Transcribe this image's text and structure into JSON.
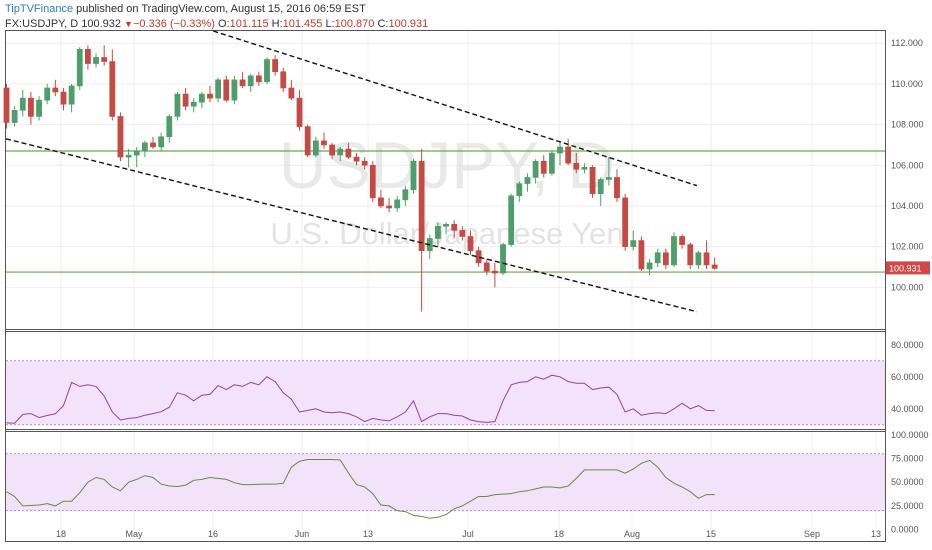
{
  "header": {
    "brand": "TipTVFinance",
    "published": " published on TradingView.com, August 15, 2016 06:59 EST",
    "symbol": "FX:USDJPY, D",
    "last": "100.932",
    "change": "−0.336 (−0.33%)",
    "open_label": "O:",
    "open": "101.115",
    "high_label": "H:",
    "high": "101.455",
    "low_label": "L:",
    "low": "100.870",
    "close_label": "C:",
    "close": "100.931"
  },
  "watermark": {
    "symbol": "USDJPY, D",
    "description": "U.S. Dollar/Japanese Yen"
  },
  "colors": {
    "up": "#4e9e6c",
    "down": "#c64a44",
    "grid": "#eeeeee",
    "resistance": "#6aa84f",
    "rsi_line": "#9c3f9c",
    "stoch_line": "#5f8f3a",
    "band_fill": "#f2e3fb",
    "price_tag": "#d24848"
  },
  "chart_data": [
    {
      "type": "candlestick",
      "title": "USDJPY, D",
      "subtitle": "U.S. Dollar/Japanese Yen",
      "x_tick_labels": [
        "18",
        "May",
        "16",
        "Jun",
        "13",
        "Jul",
        "18",
        "Aug",
        "15",
        "Sep",
        "13"
      ],
      "ylim": [
        98.0,
        112.6
      ],
      "y_ticks": [
        100,
        102,
        104,
        106,
        108,
        110,
        112
      ],
      "y_tick_labels": [
        "100.000",
        "102.000",
        "104.000",
        "106.000",
        "108.000",
        "110.000",
        "112.000"
      ],
      "last_price_label": "100.931",
      "horizontal_lines": [
        106.7,
        100.75
      ],
      "trend_lines": [
        {
          "from": [
            0,
            107.3
          ],
          "to": [
            100,
            98.8
          ]
        },
        {
          "from": [
            30,
            112.6
          ],
          "to": [
            100,
            105.0
          ]
        }
      ],
      "grid": true,
      "ohlc": [
        [
          109.8,
          110.0,
          107.8,
          108.1
        ],
        [
          108.1,
          108.9,
          107.9,
          108.7
        ],
        [
          108.7,
          109.7,
          108.4,
          109.3
        ],
        [
          109.3,
          109.6,
          108.0,
          108.4
        ],
        [
          108.4,
          109.4,
          108.2,
          109.2
        ],
        [
          109.2,
          110.0,
          109.0,
          109.8
        ],
        [
          109.8,
          110.2,
          109.4,
          109.6
        ],
        [
          109.6,
          109.8,
          108.7,
          109.0
        ],
        [
          109.0,
          110.0,
          108.6,
          109.9
        ],
        [
          109.9,
          111.8,
          109.7,
          111.7
        ],
        [
          111.7,
          111.9,
          110.7,
          111.0
        ],
        [
          111.0,
          111.5,
          110.8,
          111.3
        ],
        [
          111.3,
          111.9,
          110.9,
          111.1
        ],
        [
          111.1,
          111.7,
          108.2,
          108.4
        ],
        [
          108.4,
          108.6,
          106.2,
          106.4
        ],
        [
          106.4,
          106.8,
          105.9,
          106.5
        ],
        [
          106.5,
          106.9,
          105.9,
          106.7
        ],
        [
          106.7,
          107.2,
          106.4,
          107.1
        ],
        [
          107.1,
          107.4,
          106.8,
          106.9
        ],
        [
          106.9,
          107.6,
          106.7,
          107.4
        ],
        [
          107.4,
          108.5,
          107.1,
          108.4
        ],
        [
          108.4,
          109.6,
          108.2,
          109.5
        ],
        [
          109.5,
          109.8,
          108.7,
          108.9
        ],
        [
          108.9,
          109.3,
          108.6,
          109.1
        ],
        [
          109.1,
          109.6,
          108.8,
          109.5
        ],
        [
          109.5,
          109.9,
          109.1,
          109.3
        ],
        [
          109.3,
          110.3,
          109.1,
          110.2
        ],
        [
          110.2,
          110.4,
          109.1,
          109.2
        ],
        [
          109.2,
          110.4,
          109.0,
          110.2
        ],
        [
          110.2,
          110.6,
          109.8,
          109.9
        ],
        [
          109.9,
          110.5,
          109.6,
          110.4
        ],
        [
          110.4,
          110.6,
          109.9,
          110.1
        ],
        [
          110.1,
          111.3,
          110.0,
          111.2
        ],
        [
          111.2,
          111.4,
          110.4,
          110.6
        ],
        [
          110.6,
          110.8,
          109.6,
          109.8
        ],
        [
          109.8,
          110.2,
          109.2,
          109.3
        ],
        [
          109.3,
          109.7,
          107.7,
          107.9
        ],
        [
          107.9,
          108.0,
          106.4,
          106.5
        ],
        [
          106.5,
          107.4,
          106.4,
          107.2
        ],
        [
          107.2,
          107.6,
          106.8,
          107.0
        ],
        [
          107.0,
          107.1,
          106.3,
          106.5
        ],
        [
          106.5,
          106.9,
          106.2,
          106.8
        ],
        [
          106.8,
          107.1,
          106.3,
          106.4
        ],
        [
          106.4,
          106.6,
          106.0,
          106.2
        ],
        [
          106.2,
          106.4,
          105.8,
          106.0
        ],
        [
          106.0,
          106.2,
          104.2,
          104.4
        ],
        [
          104.4,
          104.8,
          103.9,
          104.0
        ],
        [
          104.0,
          104.4,
          103.7,
          103.9
        ],
        [
          103.9,
          104.5,
          103.7,
          104.3
        ],
        [
          104.3,
          105.0,
          104.0,
          104.8
        ],
        [
          104.8,
          106.3,
          104.6,
          106.2
        ],
        [
          106.2,
          106.8,
          98.8,
          101.8
        ],
        [
          101.8,
          102.6,
          101.4,
          102.4
        ],
        [
          102.4,
          103.2,
          102.0,
          103.0
        ],
        [
          103.0,
          103.2,
          102.6,
          103.1
        ],
        [
          103.1,
          103.3,
          102.4,
          102.8
        ],
        [
          102.8,
          103.0,
          102.3,
          102.5
        ],
        [
          102.5,
          102.8,
          101.6,
          101.8
        ],
        [
          101.8,
          102.0,
          101.0,
          101.2
        ],
        [
          101.2,
          101.4,
          100.6,
          100.8
        ],
        [
          100.8,
          101.2,
          100.0,
          100.7
        ],
        [
          100.7,
          102.2,
          100.6,
          102.1
        ],
        [
          102.1,
          104.6,
          102.0,
          104.5
        ],
        [
          104.5,
          105.2,
          104.2,
          105.1
        ],
        [
          105.1,
          105.6,
          104.7,
          105.4
        ],
        [
          105.4,
          106.3,
          105.1,
          106.2
        ],
        [
          106.2,
          106.5,
          105.4,
          105.6
        ],
        [
          105.6,
          106.7,
          105.5,
          106.6
        ],
        [
          106.6,
          107.2,
          106.0,
          106.9
        ],
        [
          106.9,
          107.3,
          106.0,
          106.1
        ],
        [
          106.1,
          106.6,
          105.6,
          105.8
        ],
        [
          105.8,
          106.1,
          105.6,
          105.9
        ],
        [
          105.9,
          106.0,
          104.4,
          104.6
        ],
        [
          104.6,
          105.4,
          104.0,
          105.3
        ],
        [
          105.3,
          106.4,
          105.0,
          105.4
        ],
        [
          105.4,
          105.8,
          104.2,
          104.4
        ],
        [
          104.4,
          104.6,
          101.8,
          102.0
        ],
        [
          102.0,
          102.8,
          101.8,
          102.3
        ],
        [
          102.3,
          102.5,
          100.8,
          100.9
        ],
        [
          100.9,
          101.4,
          100.6,
          101.2
        ],
        [
          101.2,
          101.9,
          101.0,
          101.7
        ],
        [
          101.7,
          101.9,
          100.9,
          101.1
        ],
        [
          101.1,
          102.7,
          101.0,
          102.5
        ],
        [
          102.5,
          102.6,
          101.9,
          102.1
        ],
        [
          102.1,
          102.2,
          100.9,
          101.1
        ],
        [
          101.1,
          101.8,
          100.9,
          101.7
        ],
        [
          101.7,
          102.3,
          100.9,
          101.1
        ],
        [
          101.1,
          101.46,
          100.87,
          100.93
        ]
      ]
    },
    {
      "type": "line",
      "title": "",
      "ylim": [
        28,
        88
      ],
      "y_tick_labels": [
        "80.0000",
        "60.0000",
        "40.0000"
      ],
      "y_ticks": [
        80,
        60,
        40
      ],
      "band": [
        30,
        70
      ],
      "values": [
        31.2,
        31.0,
        36.5,
        37.0,
        34.5,
        35.8,
        36.9,
        42.0,
        56.5,
        54.0,
        55.0,
        54.0,
        48.0,
        38.0,
        33.0,
        34.0,
        34.5,
        36.0,
        37.0,
        38.2,
        41.0,
        50.0,
        48.5,
        45.0,
        48.5,
        49.0,
        54.5,
        52.0,
        55.0,
        54.0,
        56.5,
        55.0,
        60.0,
        57.0,
        50.0,
        46.0,
        38.0,
        39.0,
        40.0,
        38.0,
        37.5,
        38.0,
        37.0,
        35.0,
        32.0,
        34.0,
        33.0,
        32.5,
        35.0,
        38.0,
        45.0,
        32.0,
        35.0,
        37.0,
        37.0,
        36.0,
        35.5,
        33.0,
        32.0,
        31.5,
        32.0,
        45.0,
        55.0,
        56.5,
        57.0,
        60.0,
        58.5,
        61.0,
        60.0,
        57.0,
        56.0,
        56.0,
        52.0,
        53.0,
        53.5,
        49.0,
        38.0,
        40.0,
        36.0,
        37.0,
        37.5,
        37.0,
        40.0,
        43.5,
        40.0,
        42.0,
        39.0,
        38.8
      ]
    },
    {
      "type": "line",
      "title": "",
      "ylim": [
        -12,
        103
      ],
      "y_tick_labels": [
        "100.0000",
        "75.0000",
        "50.0000",
        "25.0000",
        "0.0000"
      ],
      "y_ticks": [
        100,
        75,
        50,
        25,
        0
      ],
      "band": [
        20,
        80
      ],
      "values": [
        40,
        35,
        25,
        25.5,
        26,
        27.5,
        25,
        30,
        30,
        39,
        50,
        55,
        53,
        45,
        41,
        50,
        53,
        57,
        55,
        48,
        46,
        45.5,
        47,
        52,
        53,
        55,
        54,
        53,
        49.5,
        47.5,
        47.5,
        47.8,
        48,
        48,
        49,
        66,
        72,
        74,
        74,
        74,
        74,
        73.5,
        60,
        47.5,
        45,
        38,
        26,
        25,
        20,
        19,
        15,
        14,
        12,
        13,
        16,
        22,
        25,
        30,
        35,
        35,
        37,
        37.5,
        38,
        40,
        41,
        43,
        45,
        45,
        44,
        46,
        54,
        63,
        63,
        63,
        63,
        63,
        59.5,
        64,
        70,
        73,
        66,
        55,
        49,
        45,
        40,
        33,
        37,
        37
      ]
    }
  ]
}
